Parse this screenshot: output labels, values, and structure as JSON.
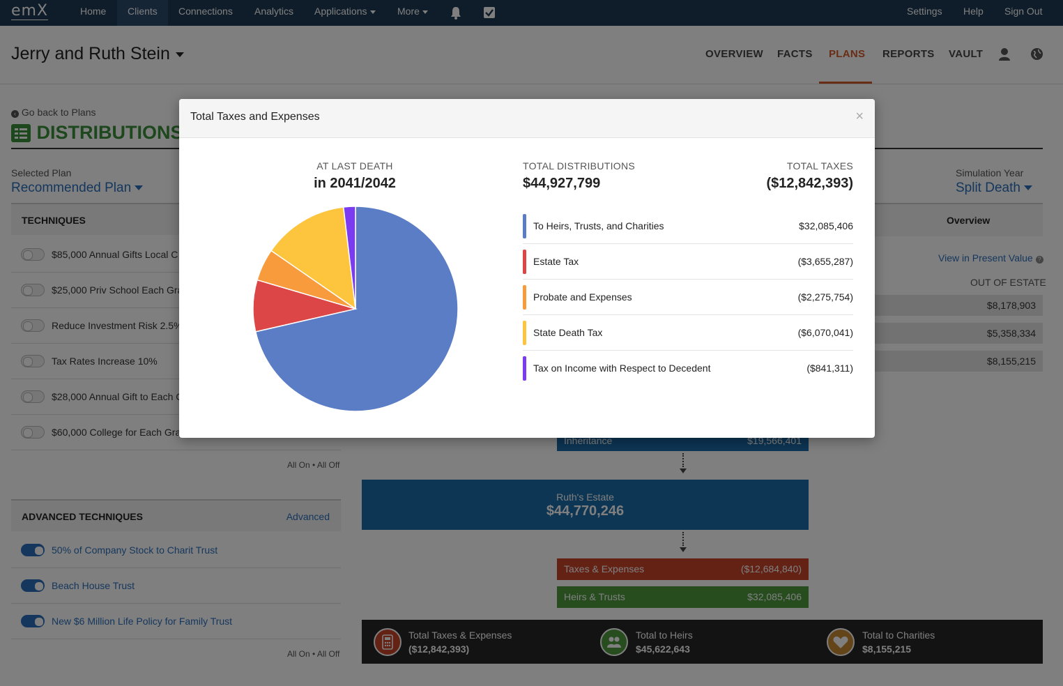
{
  "topnav": {
    "logo": "emX",
    "items": [
      "Home",
      "Clients",
      "Connections",
      "Analytics",
      "Applications",
      "More"
    ],
    "right": [
      "Settings",
      "Help",
      "Sign Out"
    ]
  },
  "client": {
    "name": "Jerry and Ruth Stein",
    "tabs": [
      "OVERVIEW",
      "FACTS",
      "PLANS",
      "REPORTS",
      "VAULT"
    ]
  },
  "page": {
    "back_link": "Go back to Plans",
    "title": "DISTRIBUTIONS",
    "selected_plan_label": "Selected Plan",
    "selected_plan": "Recommended Plan",
    "simulation_year_label": "Simulation Year",
    "simulation_year": "Split Death",
    "overview_tab": "Overview",
    "present_value_link": "View in Present Value",
    "out_of_estate_label": "OUT OF ESTATE",
    "out_of_estate_values": [
      "$8,178,903",
      "$5,358,334",
      "$8,155,215"
    ]
  },
  "techniques": {
    "title": "TECHNIQUES",
    "items": [
      "$85,000 Annual Gifts Local C",
      "$25,000 Priv School Each Gra",
      "Reduce Investment Risk 2.5%",
      "Tax Rates Increase 10%",
      "$28,000 Annual Gift to Each C",
      "$60,000 College for Each Gra"
    ],
    "all_on_off": "All On • All Off"
  },
  "advanced_techniques": {
    "title": "ADVANCED TECHNIQUES",
    "link": "Advanced",
    "items": [
      "50% of Company Stock to Charit Trust",
      "Beach House Trust",
      "New $6 Million Life Policy for Family Trust"
    ],
    "all_on_off": "All On • All Off"
  },
  "flow": {
    "inheritance_label": "Inheritance",
    "inheritance_value": "$19,566,401",
    "estate_label": "Ruth's Estate",
    "estate_value": "$44,770,246",
    "taxes_label": "Taxes & Expenses",
    "taxes_value": "($12,684,840)",
    "heirs_label": "Heirs & Trusts",
    "heirs_value": "$32,085,406"
  },
  "summary": {
    "taxes_label": "Total Taxes & Expenses",
    "taxes_value": "($12,842,393)",
    "heirs_label": "Total to Heirs",
    "heirs_value": "$45,622,643",
    "charities_label": "Total to Charities",
    "charities_value": "$8,155,215"
  },
  "modal": {
    "title": "Total Taxes and Expenses",
    "close": "×",
    "at_last_death_label": "AT LAST DEATH",
    "at_last_death_value": "in 2041/2042",
    "total_distributions_label": "TOTAL DISTRIBUTIONS",
    "total_distributions_value": "$44,927,799",
    "total_taxes_label": "TOTAL TAXES",
    "total_taxes_value": "($12,842,393)"
  },
  "chart_data": {
    "type": "pie",
    "categories": [
      "To Heirs, Trusts, and Charities",
      "Estate Tax",
      "Probate and Expenses",
      "State Death Tax",
      "Tax on Income with Respect to Decedent"
    ],
    "values": [
      32085406,
      3655287,
      2275754,
      6070041,
      841311
    ],
    "display_values": [
      "$32,085,406",
      "($3,655,287)",
      "($2,275,754)",
      "($6,070,041)",
      "($841,311)"
    ],
    "colors": [
      "#5a7dc6",
      "#dd4646",
      "#f79b3c",
      "#fdc43e",
      "#7b3bf0"
    ]
  }
}
